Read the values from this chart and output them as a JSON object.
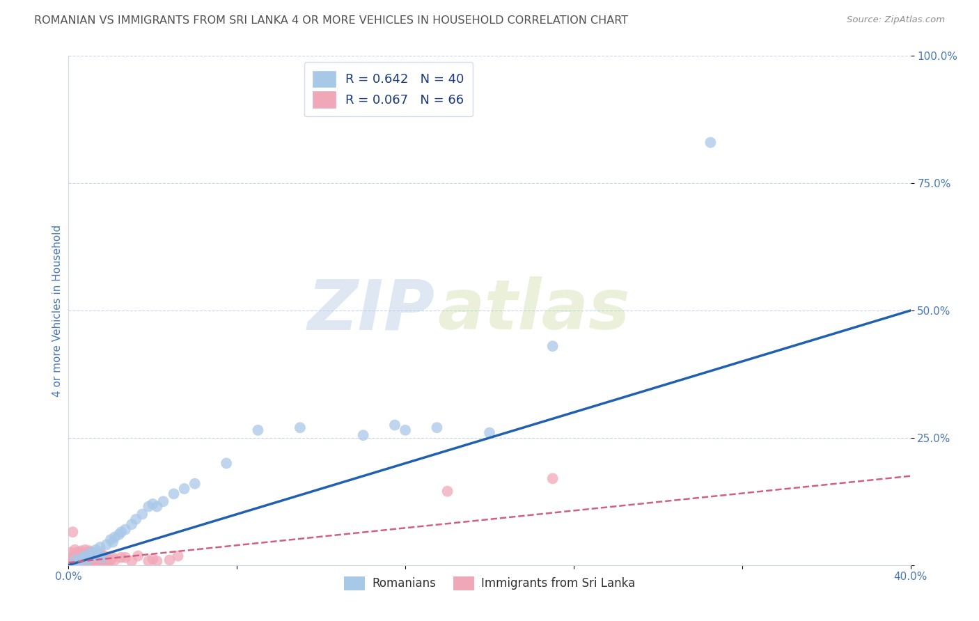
{
  "title": "ROMANIAN VS IMMIGRANTS FROM SRI LANKA 4 OR MORE VEHICLES IN HOUSEHOLD CORRELATION CHART",
  "source": "Source: ZipAtlas.com",
  "ylabel": "4 or more Vehicles in Household",
  "xlim": [
    0.0,
    0.4
  ],
  "ylim": [
    0.0,
    1.0
  ],
  "xticks": [
    0.0,
    0.08,
    0.16,
    0.24,
    0.32,
    0.4
  ],
  "xtick_labels": [
    "0.0%",
    "",
    "",
    "",
    "",
    "40.0%"
  ],
  "yticks": [
    0.0,
    0.25,
    0.5,
    0.75,
    1.0
  ],
  "ytick_labels": [
    "",
    "25.0%",
    "50.0%",
    "75.0%",
    "100.0%"
  ],
  "romanian_R": 0.642,
  "romanian_N": 40,
  "srilanka_R": 0.067,
  "srilanka_N": 66,
  "watermark_zip": "ZIP",
  "watermark_atlas": "atlas",
  "romanian_color": "#a8c8e8",
  "srilanka_color": "#f0a8b8",
  "romanian_line_color": "#2060b0",
  "srilanka_line_color": "#d06080",
  "background_color": "#ffffff",
  "grid_color": "#c8d4e8",
  "title_color": "#505050",
  "axis_label_color": "#4878b8",
  "legend_text_color": "#1a3a80",
  "romanian_scatter_x": [
    0.003,
    0.005,
    0.006,
    0.007,
    0.008,
    0.009,
    0.01,
    0.011,
    0.012,
    0.013,
    0.014,
    0.015,
    0.016,
    0.018,
    0.02,
    0.021,
    0.022,
    0.024,
    0.025,
    0.027,
    0.03,
    0.032,
    0.035,
    0.038,
    0.04,
    0.042,
    0.045,
    0.05,
    0.055,
    0.06,
    0.075,
    0.09,
    0.11,
    0.14,
    0.155,
    0.16,
    0.175,
    0.2,
    0.23,
    0.305
  ],
  "romanian_scatter_y": [
    0.01,
    0.008,
    0.012,
    0.015,
    0.018,
    0.01,
    0.02,
    0.025,
    0.018,
    0.03,
    0.022,
    0.035,
    0.015,
    0.04,
    0.05,
    0.045,
    0.055,
    0.06,
    0.065,
    0.07,
    0.08,
    0.09,
    0.1,
    0.115,
    0.12,
    0.115,
    0.125,
    0.14,
    0.15,
    0.16,
    0.2,
    0.265,
    0.27,
    0.255,
    0.275,
    0.265,
    0.27,
    0.26,
    0.43,
    0.83
  ],
  "srilanka_scatter_x": [
    0.001,
    0.001,
    0.002,
    0.002,
    0.003,
    0.003,
    0.003,
    0.004,
    0.004,
    0.004,
    0.005,
    0.005,
    0.005,
    0.006,
    0.006,
    0.006,
    0.006,
    0.007,
    0.007,
    0.007,
    0.008,
    0.008,
    0.008,
    0.008,
    0.009,
    0.009,
    0.009,
    0.01,
    0.01,
    0.01,
    0.01,
    0.011,
    0.011,
    0.011,
    0.012,
    0.012,
    0.012,
    0.013,
    0.013,
    0.014,
    0.014,
    0.015,
    0.015,
    0.015,
    0.016,
    0.016,
    0.017,
    0.017,
    0.018,
    0.018,
    0.019,
    0.02,
    0.021,
    0.022,
    0.025,
    0.027,
    0.03,
    0.033,
    0.038,
    0.04,
    0.042,
    0.048,
    0.052,
    0.18,
    0.23,
    0.002
  ],
  "srilanka_scatter_y": [
    0.01,
    0.025,
    0.008,
    0.018,
    0.01,
    0.02,
    0.03,
    0.008,
    0.018,
    0.025,
    0.008,
    0.015,
    0.025,
    0.008,
    0.012,
    0.02,
    0.028,
    0.008,
    0.015,
    0.022,
    0.008,
    0.012,
    0.02,
    0.03,
    0.008,
    0.015,
    0.025,
    0.008,
    0.012,
    0.018,
    0.028,
    0.008,
    0.015,
    0.025,
    0.008,
    0.015,
    0.022,
    0.008,
    0.018,
    0.008,
    0.018,
    0.008,
    0.015,
    0.025,
    0.008,
    0.018,
    0.008,
    0.018,
    0.008,
    0.015,
    0.008,
    0.01,
    0.015,
    0.01,
    0.015,
    0.015,
    0.008,
    0.018,
    0.008,
    0.012,
    0.008,
    0.01,
    0.018,
    0.145,
    0.17,
    0.065
  ],
  "rom_line_x0": 0.0,
  "rom_line_y0": 0.0,
  "rom_line_x1": 0.4,
  "rom_line_y1": 0.5,
  "sri_line_x0": 0.0,
  "sri_line_y0": 0.005,
  "sri_line_x1": 0.4,
  "sri_line_y1": 0.175
}
